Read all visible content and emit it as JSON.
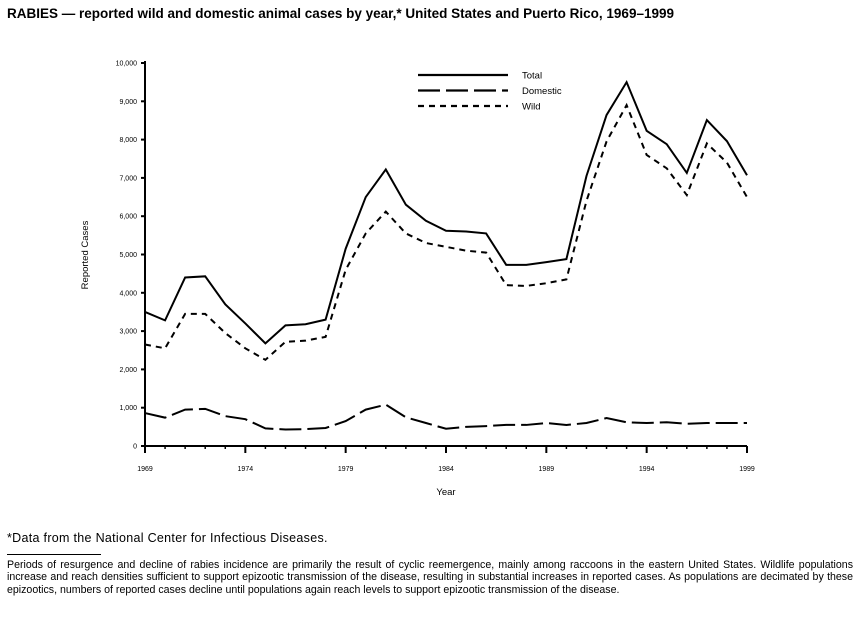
{
  "title": "RABIES — reported wild and domestic animal cases by year,* United States and Puerto Rico, 1969–1999",
  "footnote": "*Data from the National Center for Infectious Diseases.",
  "paragraph": "Periods of resurgence and decline of rabies incidence are primarily the result of cyclic reemergence, mainly among raccoons in the eastern United States. Wildlife populations increase and reach densities sufficient to support epizootic transmission of the disease, resulting in substantial increases in reported cases. As populations are decimated by these epizootics, numbers of reported cases decline until populations again reach levels to support epizootic transmission of the disease.",
  "chart_data": {
    "type": "line",
    "xlabel": "Year",
    "ylabel": "Reported Cases",
    "xlim": [
      1969,
      1999
    ],
    "ylim": [
      0,
      10000
    ],
    "x_ticks": [
      "1969",
      "1974",
      "1979",
      "1984",
      "1989",
      "1994",
      "1999"
    ],
    "y_ticks": [
      "0",
      "1,000",
      "2,000",
      "3,000",
      "4,000",
      "5,000",
      "6,000",
      "7,000",
      "8,000",
      "9,000",
      "10,000"
    ],
    "legend_position": "top-right",
    "grid": false,
    "x": [
      1969,
      1970,
      1971,
      1972,
      1973,
      1974,
      1975,
      1976,
      1977,
      1978,
      1979,
      1980,
      1981,
      1982,
      1983,
      1984,
      1985,
      1986,
      1987,
      1988,
      1989,
      1990,
      1991,
      1992,
      1993,
      1994,
      1995,
      1996,
      1997,
      1998,
      1999
    ],
    "series": [
      {
        "name": "Total",
        "style": "solid",
        "values": [
          3500,
          3280,
          4400,
          4430,
          3700,
          3200,
          2680,
          3150,
          3180,
          3300,
          5150,
          6500,
          7220,
          6300,
          5880,
          5620,
          5600,
          5550,
          4730,
          4730,
          4800,
          4880,
          7050,
          8640,
          9500,
          8230,
          7880,
          7130,
          8510,
          7960,
          7070
        ]
      },
      {
        "name": "Domestic",
        "style": "long-dash",
        "values": [
          860,
          740,
          950,
          970,
          780,
          700,
          460,
          430,
          440,
          470,
          650,
          950,
          1080,
          750,
          600,
          450,
          500,
          520,
          550,
          550,
          600,
          550,
          600,
          730,
          620,
          600,
          620,
          580,
          600,
          600,
          600
        ]
      },
      {
        "name": "Wild",
        "style": "short-dash",
        "values": [
          2650,
          2550,
          3450,
          3450,
          2950,
          2550,
          2250,
          2720,
          2750,
          2850,
          4600,
          5550,
          6120,
          5550,
          5300,
          5200,
          5100,
          5050,
          4200,
          4180,
          4250,
          4350,
          6400,
          7950,
          8900,
          7600,
          7250,
          6550,
          7900,
          7400,
          6500
        ]
      }
    ]
  }
}
